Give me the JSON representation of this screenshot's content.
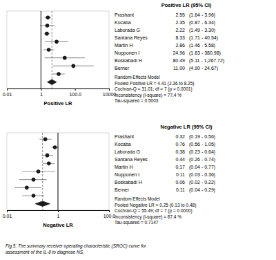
{
  "chart_data": [
    {
      "type": "forest",
      "title": "Positive LR (95% CI)",
      "xlabel": "Positive LR",
      "categories": [
        "Prashant",
        "Kocaba",
        "Laborada G",
        "Santana Reyes",
        "Martin H",
        "Nupponen I",
        "Boskabadi H",
        "Berner"
      ],
      "values": [
        2.55,
        2.35,
        2.22,
        8.33,
        2.86,
        24.96,
        80.49,
        11.0
      ],
      "value_labels": [
        "2.55",
        "2.35",
        "2.22",
        "8.33",
        "2.86",
        "24.96",
        "80.49",
        "11.00"
      ],
      "ci_low": [
        1.64,
        0.87,
        1.49,
        1.71,
        1.46,
        1.63,
        5.11,
        4.9
      ],
      "ci_high": [
        3.96,
        6.34,
        3.3,
        40.54,
        5.58,
        380.98,
        1267.72,
        24.67
      ],
      "ci_labels": [
        "(1.64 - 3.96)",
        "(0.87 - 6.34)",
        "(1.49 - 3.30)",
        "(1.71 - 40.54)",
        "(1.46 - 5.58)",
        "(1.63 - 380.98)",
        "(5.11 - 1,267.72)",
        "(4.90 - 24.67)"
      ],
      "pooled": 4.41,
      "pooled_low": 2.36,
      "pooled_high": 8.25,
      "reference_line": 1,
      "annotations": [
        "Random Effects Model",
        "Pooled Positive LR = 4.41 (2.36 to 8.25)",
        "Cochran-Q = 31.01; df = 7 (p = 0.0001)",
        "Inconsistency (I-square) = 77.4 %",
        "Tau-squared = 0.5003"
      ],
      "log": "x",
      "xlim": [
        0.01,
        10000
      ],
      "xticks": [
        0.01,
        1,
        {
          "value": 100,
          "label": "100.0"
        },
        10000
      ],
      "grid": false,
      "data_labels": true,
      "tick_labels": "x",
      "color": "#1a1a1a"
    },
    {
      "type": "forest",
      "title": "Negative LR (95% CI)",
      "xlabel": "Negative LR",
      "categories": [
        "Prashant",
        "Kocaba",
        "Laborada G",
        "Santana Reyes",
        "Martin H",
        "Nupponen I",
        "Boskabadi H",
        "Berner"
      ],
      "values": [
        0.32,
        0.76,
        0.38,
        0.44,
        0.17,
        0.11,
        0.06,
        0.11
      ],
      "value_labels": [
        "0.32",
        "0.76",
        "0.38",
        "0.44",
        "0.17",
        "0.11",
        "0.06",
        "0.11"
      ],
      "ci_low": [
        0.19,
        0.56,
        0.23,
        0.26,
        0.04,
        0.03,
        0.02,
        0.04
      ],
      "ci_high": [
        0.56,
        1.05,
        0.64,
        0.74,
        0.77,
        0.36,
        0.22,
        0.29
      ],
      "ci_labels": [
        "(0.19 - 0.56)",
        "(0.56 - 1.05)",
        "(0.23 - 0.64)",
        "(0.26 - 0.74)",
        "(0.04 - 0.77)",
        "(0.03 - 0.36)",
        "(0.02 - 0.22)",
        "(0.04 - 0.29)"
      ],
      "pooled": 0.25,
      "pooled_low": 0.13,
      "pooled_high": 0.48,
      "reference_line": 1,
      "annotations": [
        "Random Effects Model",
        "Pooled Negative LR = 0.25 (0.13 to 0.48)",
        "Cochran-Q = 55.49; df = 7 (p = 0.0000)",
        "Inconsistency (I-square) = 87.4 %",
        "Tau-squared = 0.7147"
      ],
      "caption": [
        "Fig 5. The summary receiver operating characteristic (SROC) curve for",
        "assessment of the IL-8 to diagnose NS."
      ],
      "log": "x",
      "xlim": [
        0.01,
        100.0
      ],
      "xticks": [
        0.01,
        1,
        {
          "value": 100.0,
          "label": "100.0"
        }
      ],
      "grid": false,
      "data_labels": true,
      "tick_labels": "x",
      "color": "#1a1a1a"
    }
  ]
}
